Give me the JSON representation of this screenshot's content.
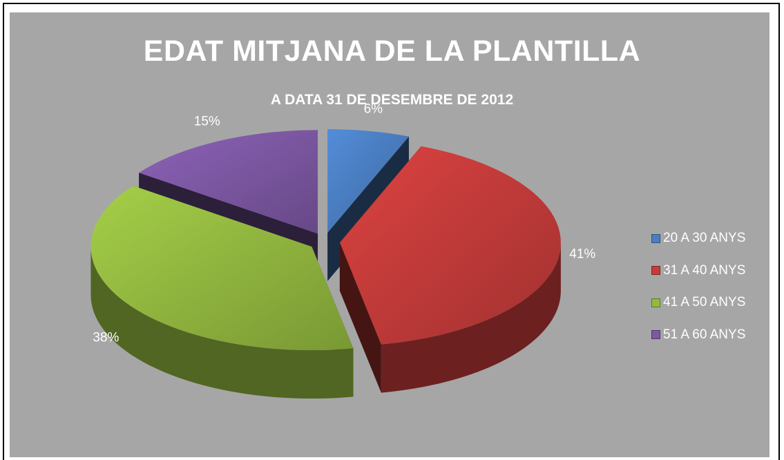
{
  "chart_data": {
    "type": "pie",
    "variant": "3d-exploded",
    "title": "EDAT MITJANA DE LA PLANTILLA",
    "subtitle": "A DATA 31 DE DESEMBRE DE 2012",
    "categories": [
      "20 A 30 ANYS",
      "31 A 40 ANYS",
      "41 A 50 ANYS",
      "51 A 60 ANYS"
    ],
    "values": [
      6,
      41,
      38,
      15
    ],
    "data_labels": [
      "6%",
      "41%",
      "38%",
      "15%"
    ],
    "colors": [
      "#4a7ec2",
      "#c43c3a",
      "#93b940",
      "#7d58a4"
    ],
    "legend_position": "right",
    "background": "#a6a6a6"
  }
}
